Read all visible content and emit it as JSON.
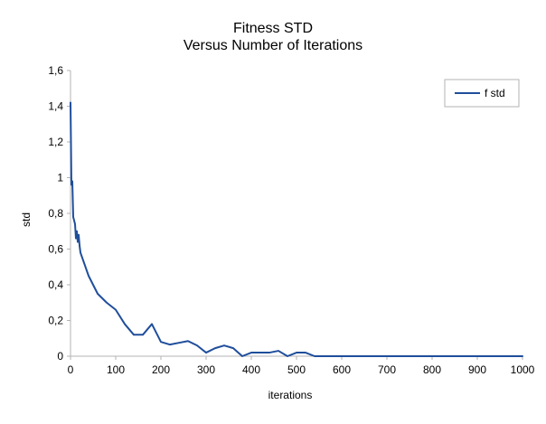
{
  "chart_data": {
    "type": "line",
    "title": "Fitness STD",
    "subtitle": "Versus Number of Iterations",
    "xlabel": "iterations",
    "ylabel": "std",
    "xlim": [
      0,
      1000
    ],
    "ylim": [
      0,
      1.6
    ],
    "x_ticks": [
      "0",
      "100",
      "200",
      "300",
      "400",
      "500",
      "600",
      "700",
      "800",
      "900",
      "1000"
    ],
    "y_ticks": [
      "0",
      "0,2",
      "0,4",
      "0,6",
      "0,8",
      "1",
      "1,2",
      "1,4",
      "1,6"
    ],
    "grid": false,
    "legend_position": "top-right",
    "series": [
      {
        "name": "f std",
        "color": "#1f4e9b",
        "points": [
          [
            0,
            1.42
          ],
          [
            2,
            0.96
          ],
          [
            4,
            0.98
          ],
          [
            6,
            0.78
          ],
          [
            8,
            0.76
          ],
          [
            10,
            0.74
          ],
          [
            12,
            0.66
          ],
          [
            14,
            0.7
          ],
          [
            16,
            0.64
          ],
          [
            18,
            0.68
          ],
          [
            20,
            0.62
          ],
          [
            22,
            0.58
          ],
          [
            40,
            0.45
          ],
          [
            60,
            0.35
          ],
          [
            80,
            0.3
          ],
          [
            100,
            0.26
          ],
          [
            120,
            0.18
          ],
          [
            140,
            0.12
          ],
          [
            160,
            0.12
          ],
          [
            180,
            0.18
          ],
          [
            200,
            0.08
          ],
          [
            220,
            0.065
          ],
          [
            240,
            0.075
          ],
          [
            260,
            0.085
          ],
          [
            280,
            0.06
          ],
          [
            300,
            0.02
          ],
          [
            320,
            0.045
          ],
          [
            340,
            0.06
          ],
          [
            360,
            0.045
          ],
          [
            380,
            0.0
          ],
          [
            400,
            0.02
          ],
          [
            420,
            0.02
          ],
          [
            440,
            0.02
          ],
          [
            460,
            0.03
          ],
          [
            480,
            0.0
          ],
          [
            500,
            0.02
          ],
          [
            520,
            0.02
          ],
          [
            540,
            0.0
          ],
          [
            560,
            0.0
          ],
          [
            600,
            0.0
          ],
          [
            700,
            0.0
          ],
          [
            800,
            0.0
          ],
          [
            900,
            0.0
          ],
          [
            1000,
            0.0
          ]
        ]
      }
    ]
  }
}
